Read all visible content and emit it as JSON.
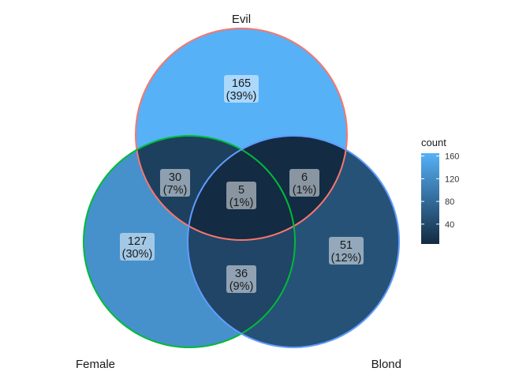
{
  "chart_data": {
    "type": "venn",
    "sets": [
      "Evil",
      "Female",
      "Blond"
    ],
    "regions": [
      {
        "sets": [
          "Evil"
        ],
        "count": 165,
        "percent": "(39%)"
      },
      {
        "sets": [
          "Female"
        ],
        "count": 127,
        "percent": "(30%)"
      },
      {
        "sets": [
          "Blond"
        ],
        "count": 51,
        "percent": "(12%)"
      },
      {
        "sets": [
          "Evil",
          "Female"
        ],
        "count": 30,
        "percent": "(7%)"
      },
      {
        "sets": [
          "Evil",
          "Blond"
        ],
        "count": 6,
        "percent": "(1%)"
      },
      {
        "sets": [
          "Female",
          "Blond"
        ],
        "count": 36,
        "percent": "(9%)"
      },
      {
        "sets": [
          "Evil",
          "Female",
          "Blond"
        ],
        "count": 5,
        "percent": "(1%)"
      }
    ],
    "legend": {
      "title": "count",
      "ticks": [
        40,
        80,
        120,
        160
      ],
      "range": [
        5,
        165
      ],
      "color_low": "#132B43",
      "color_high": "#56B1F7",
      "placement": "right"
    },
    "set_colors": {
      "Evil": "#F8766D",
      "Female": "#00BA38",
      "Blond": "#619CFF"
    }
  }
}
